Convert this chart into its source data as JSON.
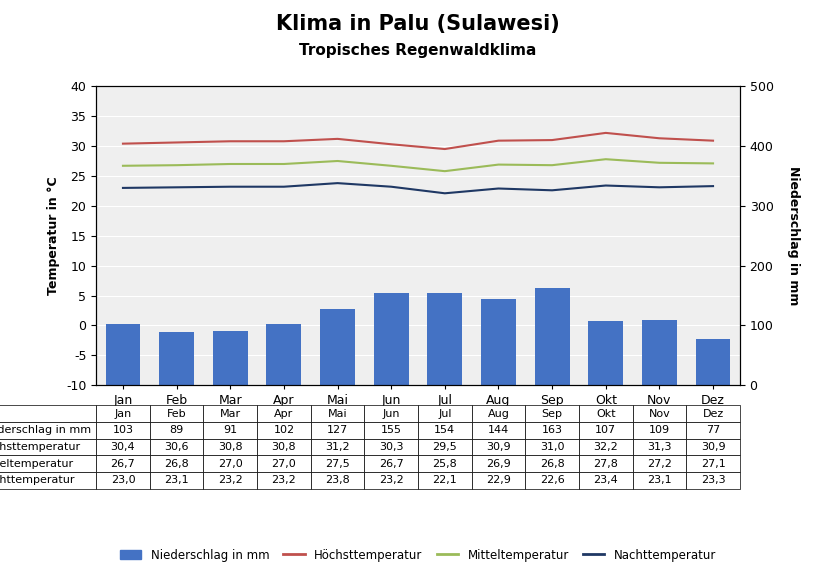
{
  "months": [
    "Jan",
    "Feb",
    "Mar",
    "Apr",
    "Mai",
    "Jun",
    "Jul",
    "Aug",
    "Sep",
    "Okt",
    "Nov",
    "Dez"
  ],
  "niederschlag": [
    103,
    89,
    91,
    102,
    127,
    155,
    154,
    144,
    163,
    107,
    109,
    77
  ],
  "hoechst": [
    30.4,
    30.6,
    30.8,
    30.8,
    31.2,
    30.3,
    29.5,
    30.9,
    31.0,
    32.2,
    31.3,
    30.9
  ],
  "mittel": [
    26.7,
    26.8,
    27.0,
    27.0,
    27.5,
    26.7,
    25.8,
    26.9,
    26.8,
    27.8,
    27.2,
    27.1
  ],
  "nacht": [
    23.0,
    23.1,
    23.2,
    23.2,
    23.8,
    23.2,
    22.1,
    22.9,
    22.6,
    23.4,
    23.1,
    23.3
  ],
  "title": "Klima in Palu (Sulawesi)",
  "subtitle": "Tropisches Regenwaldklima",
  "ylabel_left": "Temperatur in °C",
  "ylabel_right": "Niederschlag in mm",
  "bar_color": "#4472C4",
  "hoechst_color": "#C0504D",
  "mittel_color": "#9BBB59",
  "nacht_color": "#1F3864",
  "temp_ylim": [
    -10,
    40
  ],
  "temp_yticks": [
    -10,
    -5,
    0,
    5,
    10,
    15,
    20,
    25,
    30,
    35,
    40
  ],
  "precip_ylim": [
    0,
    500
  ],
  "precip_yticks": [
    0,
    100,
    200,
    300,
    400,
    500
  ],
  "plot_bg_color": "#EFEFEF",
  "grid_color": "#FFFFFF",
  "fig_bg_color": "#FFFFFF",
  "table_rows": [
    "Niederschlag in mm",
    "Höchsttemperatur",
    "Mitteltemperatur",
    "Nachttemperatur"
  ],
  "legend_labels": [
    "Niederschlag in mm",
    "Höchsttemperatur",
    "Mitteltemperatur",
    "Nachttemperatur"
  ],
  "table_fontsize": 8,
  "axis_fontsize": 9,
  "title_fontsize": 15,
  "subtitle_fontsize": 11
}
